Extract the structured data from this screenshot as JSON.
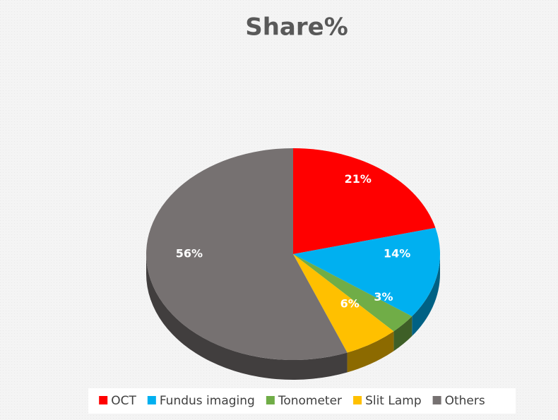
{
  "chart_data": {
    "type": "pie",
    "title": "Share%",
    "categories": [
      "OCT",
      "Fundus imaging",
      "Tonometer",
      "Slit Lamp",
      "Others"
    ],
    "values": [
      21,
      14,
      3,
      6,
      56
    ],
    "value_labels": [
      "21%",
      "14%",
      "3%",
      "6%",
      "56%"
    ],
    "colors": [
      "#ff0000",
      "#00b0f0",
      "#70ad47",
      "#ffc000",
      "#767171"
    ],
    "legend": "bottom"
  }
}
